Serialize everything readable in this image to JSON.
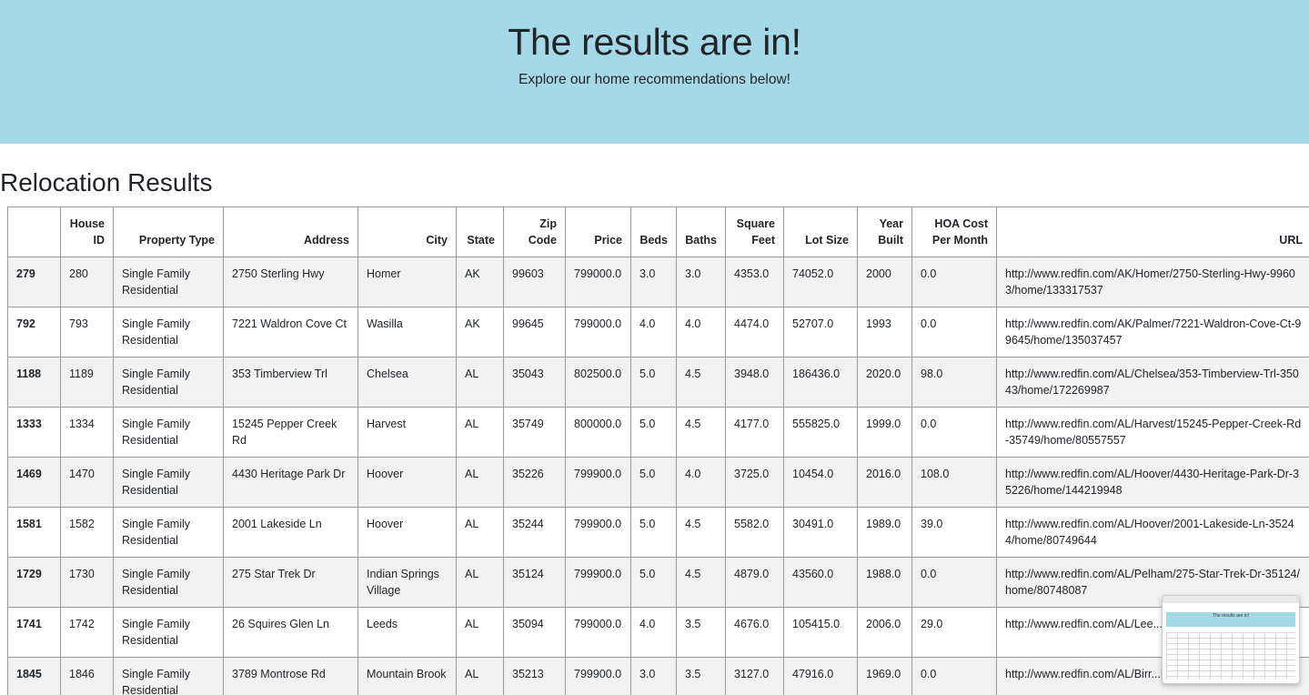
{
  "hero": {
    "title": "The results are in!",
    "subtitle": "Explore our home recommendations below!",
    "background_color": "#a6d9e8"
  },
  "section": {
    "title": "Relocation Results"
  },
  "table": {
    "headers": [
      "",
      "House ID",
      "Property Type",
      "Address",
      "City",
      "State",
      "Zip Code",
      "Price",
      "Beds",
      "Baths",
      "Square Feet",
      "Lot Size",
      "Year Built",
      "HOA Cost Per Month",
      "URL"
    ],
    "rows": [
      [
        "279",
        "280",
        "Single Family Residential",
        "2750 Sterling Hwy",
        "Homer",
        "AK",
        "99603",
        "799000.0",
        "3.0",
        "3.0",
        "4353.0",
        "74052.0",
        "2000",
        "0.0",
        "http://www.redfin.com/AK/Homer/2750-Sterling-Hwy-99603/home/133317537"
      ],
      [
        "792",
        "793",
        "Single Family Residential",
        "7221 Waldron Cove Ct",
        "Wasilla",
        "AK",
        "99645",
        "799000.0",
        "4.0",
        "4.0",
        "4474.0",
        "52707.0",
        "1993",
        "0.0",
        "http://www.redfin.com/AK/Palmer/7221-Waldron-Cove-Ct-99645/home/135037457"
      ],
      [
        "1188",
        "1189",
        "Single Family Residential",
        "353 Timberview Trl",
        "Chelsea",
        "AL",
        "35043",
        "802500.0",
        "5.0",
        "4.5",
        "3948.0",
        "186436.0",
        "2020.0",
        "98.0",
        "http://www.redfin.com/AL/Chelsea/353-Timberview-Trl-35043/home/172269987"
      ],
      [
        "1333",
        "1334",
        "Single Family Residential",
        "15245 Pepper Creek Rd",
        "Harvest",
        "AL",
        "35749",
        "800000.0",
        "5.0",
        "4.5",
        "4177.0",
        "555825.0",
        "1999.0",
        "0.0",
        "http://www.redfin.com/AL/Harvest/15245-Pepper-Creek-Rd-35749/home/80557557"
      ],
      [
        "1469",
        "1470",
        "Single Family Residential",
        "4430 Heritage Park Dr",
        "Hoover",
        "AL",
        "35226",
        "799900.0",
        "5.0",
        "4.0",
        "3725.0",
        "10454.0",
        "2016.0",
        "108.0",
        "http://www.redfin.com/AL/Hoover/4430-Heritage-Park-Dr-35226/home/144219948"
      ],
      [
        "1581",
        "1582",
        "Single Family Residential",
        "2001 Lakeside Ln",
        "Hoover",
        "AL",
        "35244",
        "799900.0",
        "5.0",
        "4.5",
        "5582.0",
        "30491.0",
        "1989.0",
        "39.0",
        "http://www.redfin.com/AL/Hoover/2001-Lakeside-Ln-35244/home/80749644"
      ],
      [
        "1729",
        "1730",
        "Single Family Residential",
        "275 Star Trek Dr",
        "Indian Springs Village",
        "AL",
        "35124",
        "799900.0",
        "5.0",
        "4.5",
        "4879.0",
        "43560.0",
        "1988.0",
        "0.0",
        "http://www.redfin.com/AL/Pelham/275-Star-Trek-Dr-35124/home/80748087"
      ],
      [
        "1741",
        "1742",
        "Single Family Residential",
        "26 Squires Glen Ln",
        "Leeds",
        "AL",
        "35094",
        "799000.0",
        "4.0",
        "3.5",
        "4676.0",
        "105415.0",
        "2006.0",
        "29.0",
        "http://www.redfin.com/AL/Lee...35094/home/80742432"
      ],
      [
        "1845",
        "1846",
        "Single Family Residential",
        "3789 Montrose Rd",
        "Mountain Brook",
        "AL",
        "35213",
        "799900.0",
        "3.0",
        "3.5",
        "3127.0",
        "47916.0",
        "1969.0",
        "0.0",
        "http://www.redfin.com/AL/Birr...Rd-35213/home/80944300"
      ]
    ]
  },
  "thumbnail": {
    "title": "The results are in!"
  }
}
